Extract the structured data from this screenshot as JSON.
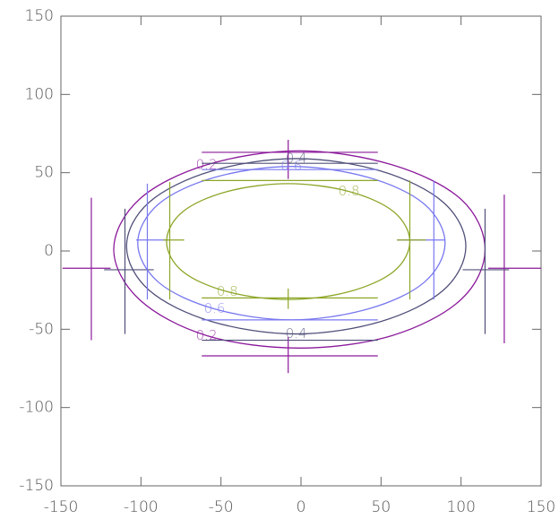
{
  "chart_data": {
    "type": "contour",
    "xlim": [
      -150,
      150
    ],
    "ylim": [
      -150,
      150
    ],
    "xticks": [
      -150,
      -100,
      -50,
      0,
      50,
      100,
      150
    ],
    "yticks": [
      -150,
      -100,
      -50,
      0,
      50,
      100,
      150
    ],
    "levels": [
      {
        "name": "0.2",
        "color": "#8b1a9b",
        "x": [
          115,
          100,
          57,
          -1,
          -59,
          -101,
          -117,
          -101,
          -59,
          -1,
          57,
          100
        ],
        "y": [
          1,
          33,
          55,
          64,
          55,
          33,
          1,
          -31,
          -54,
          -62,
          -54,
          -31
        ],
        "segments": [
          [
            -62,
            63,
            48,
            63
          ],
          [
            -8,
            46,
            -8,
            71
          ],
          [
            -62,
            -67,
            48,
            -67
          ],
          [
            -8,
            -55,
            -8,
            -78
          ],
          [
            -149,
            -11,
            -119,
            -11
          ],
          [
            -131,
            34,
            -131,
            -57
          ],
          [
            117,
            -11,
            150,
            -11
          ],
          [
            127,
            36,
            127,
            -59
          ]
        ]
      },
      {
        "name": "0.4",
        "color": "#50507a",
        "x": [
          103,
          89,
          50,
          -3,
          -56,
          -95,
          -109,
          -95,
          -56,
          -3,
          50,
          89
        ],
        "y": [
          3,
          31,
          51,
          59,
          51,
          31,
          3,
          -25,
          -45,
          -53,
          -45,
          -25
        ],
        "segments": [
          [
            -62,
            56,
            48,
            56
          ],
          [
            -62,
            -57,
            48,
            -57
          ],
          [
            -123,
            -12,
            -92,
            -12
          ],
          [
            -110,
            27,
            -110,
            -53
          ],
          [
            101,
            -12,
            130,
            -12
          ],
          [
            115,
            27,
            115,
            -53
          ]
        ]
      },
      {
        "name": "0.6",
        "color": "#7878f0",
        "x": [
          90,
          77,
          42,
          -6,
          -54,
          -89,
          -102,
          -89,
          -54,
          -6,
          42,
          77
        ],
        "y": [
          5,
          30,
          47,
          54,
          47,
          30,
          5,
          -20,
          -37,
          -44,
          -37,
          -20
        ],
        "segments": [
          [
            -62,
            52,
            48,
            52
          ],
          [
            -62,
            -44,
            48,
            -44
          ],
          [
            -103,
            7,
            -83,
            7
          ],
          [
            -96,
            43,
            -96,
            -31
          ],
          [
            60,
            7,
            90,
            7
          ],
          [
            83,
            45,
            83,
            -31
          ]
        ]
      },
      {
        "name": "0.8",
        "color": "#8ca628",
        "x": [
          68,
          58,
          30,
          -8,
          -46,
          -74,
          -84,
          -74,
          -46,
          -8,
          30,
          58
        ],
        "y": [
          6,
          25,
          38,
          43,
          38,
          25,
          6,
          -13,
          -26,
          -31,
          -26,
          -13
        ],
        "segments": [
          [
            -62,
            45,
            48,
            45
          ],
          [
            -62,
            -30,
            48,
            -30
          ],
          [
            -8,
            -24,
            -8,
            -37
          ],
          [
            -86,
            7,
            -73,
            7
          ],
          [
            -82,
            44,
            -82,
            -31
          ],
          [
            60,
            7,
            78,
            7
          ],
          [
            68,
            45,
            68,
            -31
          ]
        ]
      }
    ]
  }
}
